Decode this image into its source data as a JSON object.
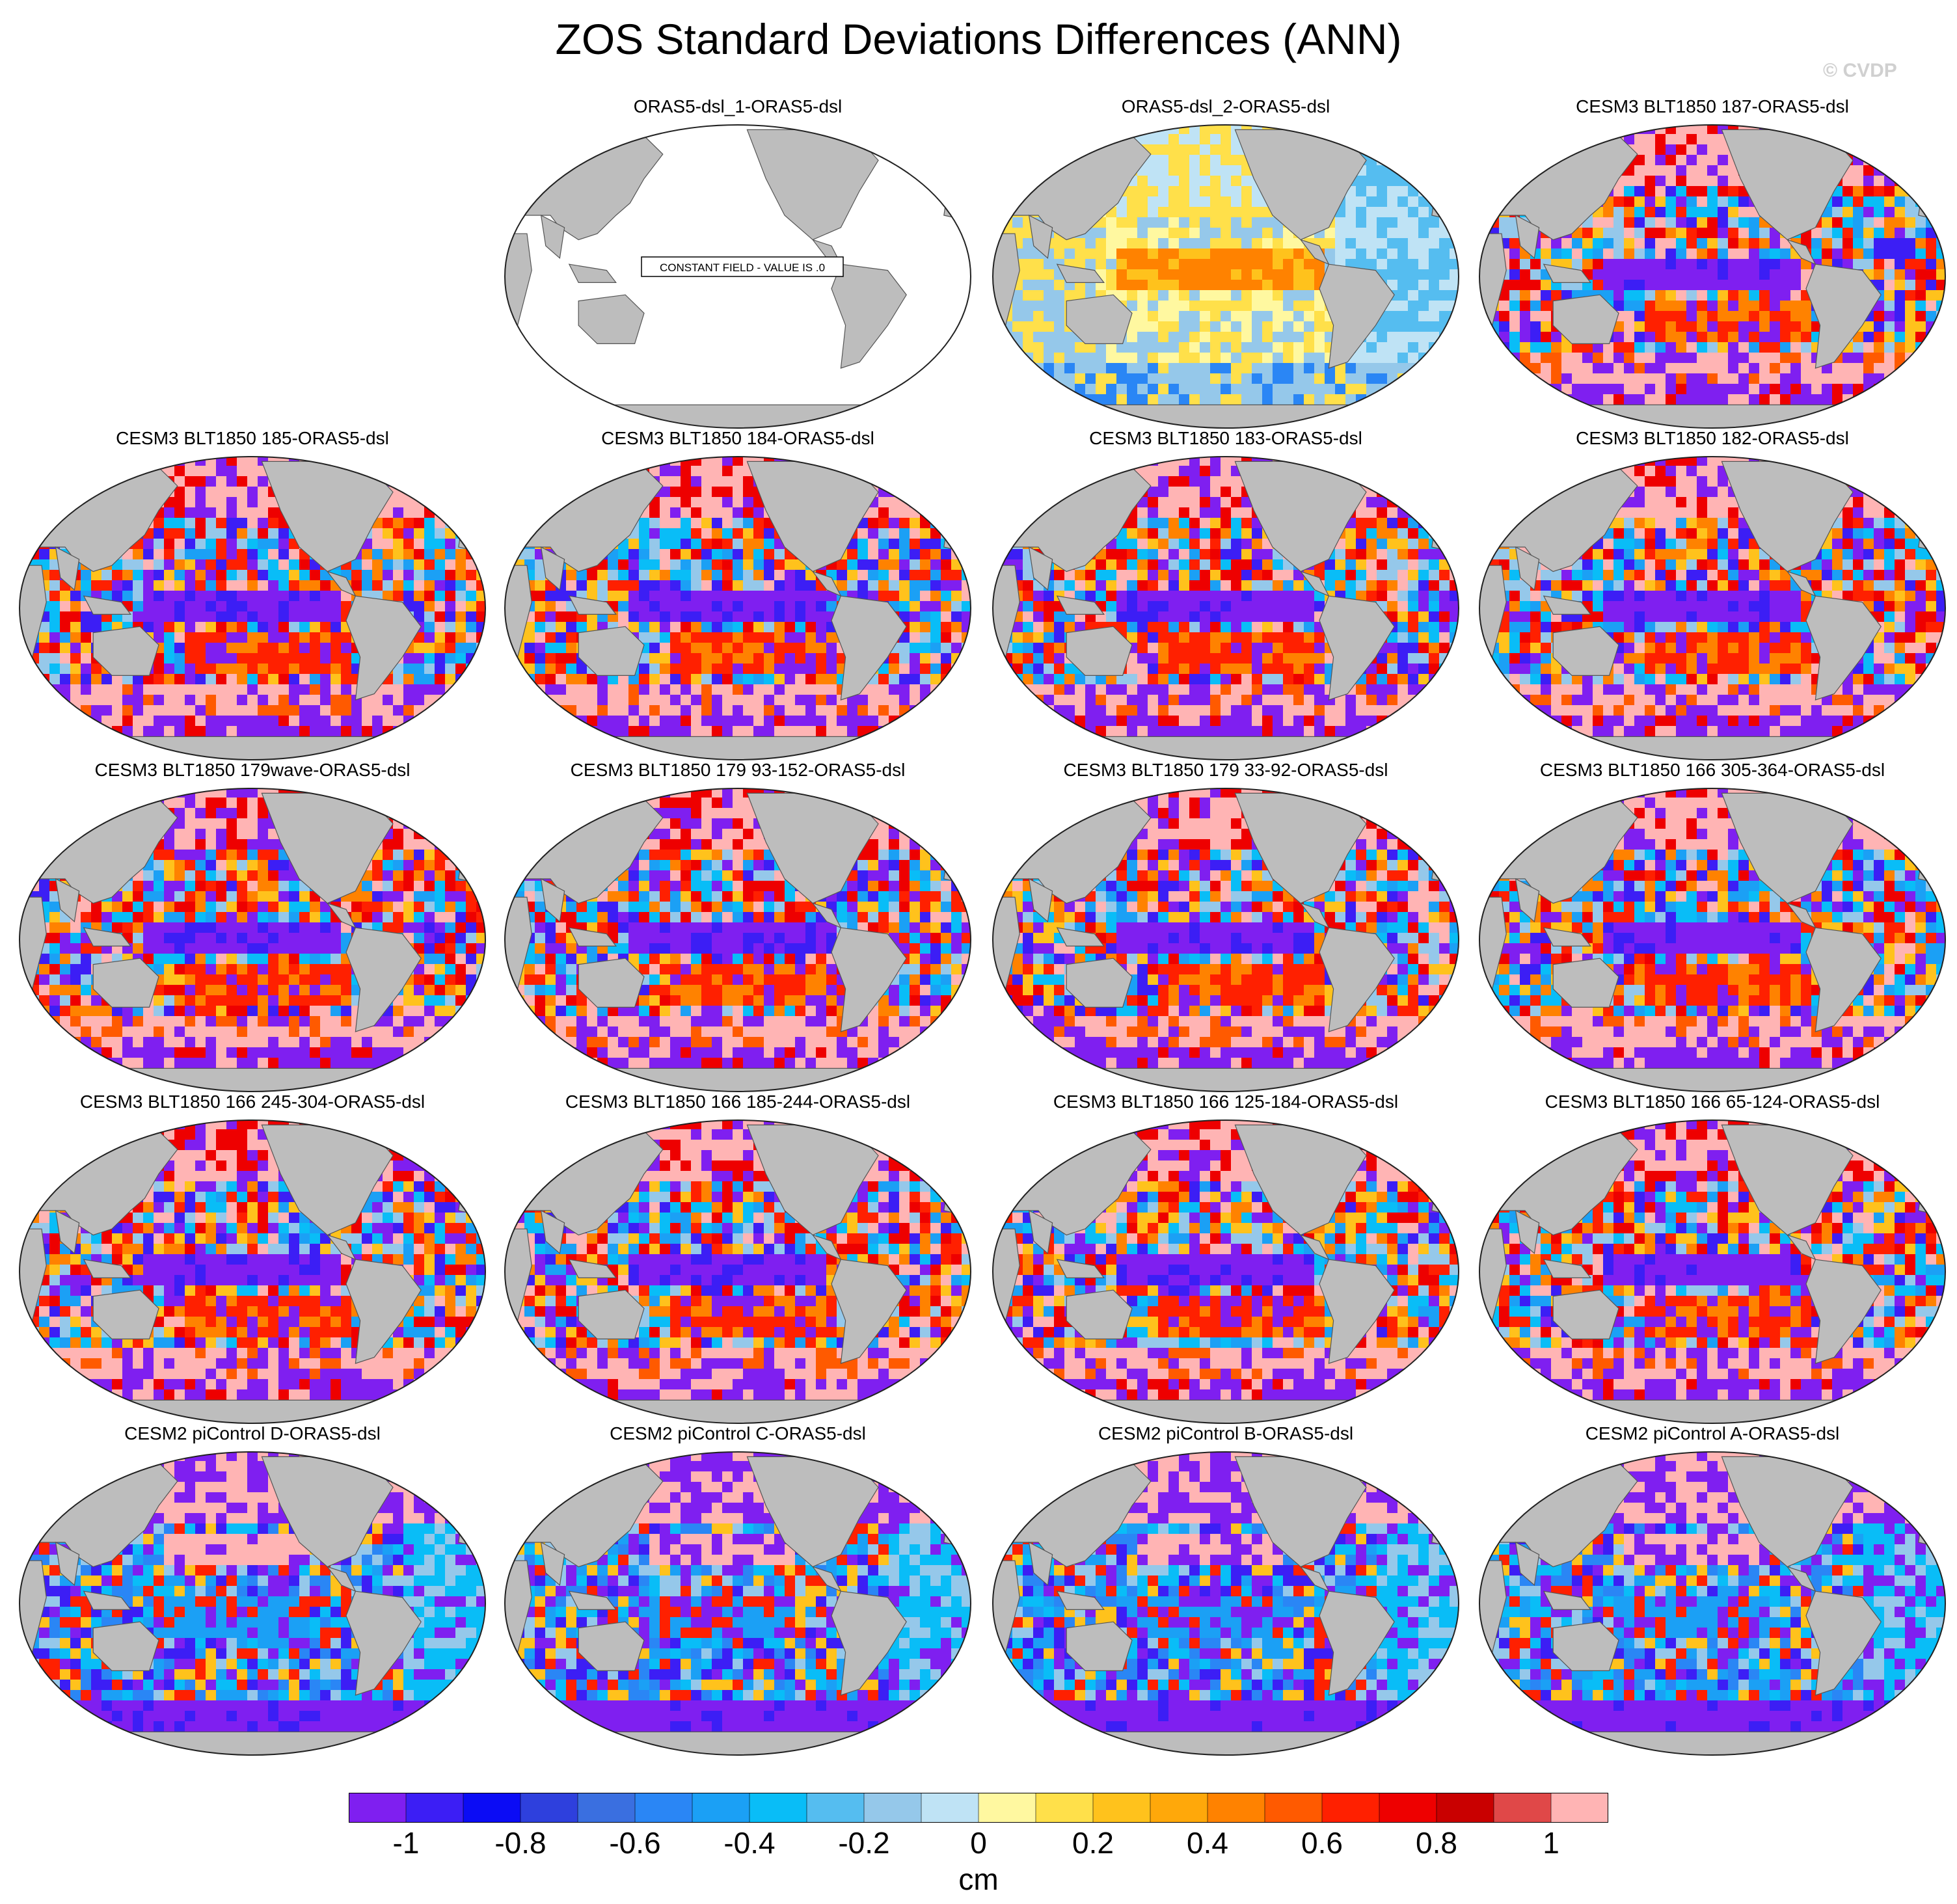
{
  "figure": {
    "title": "ZOS Standard Deviations Differences (ANN)",
    "watermark": "© CVDP"
  },
  "panels": [
    {
      "title": "ORAS5-dsl_1-ORAS5-dsl",
      "constant": true,
      "constant_label": "CONSTANT FIELD - VALUE IS .0",
      "style": "const"
    },
    {
      "title": "ORAS5-dsl_2-ORAS5-dsl",
      "style": "warmyellow"
    },
    {
      "title": "CESM3 BLT1850 187-ORAS5-dsl",
      "style": "cesm3"
    },
    {
      "title": "CESM3 BLT1850 185-ORAS5-dsl",
      "style": "cesm3"
    },
    {
      "title": "CESM3 BLT1850 184-ORAS5-dsl",
      "style": "cesm3"
    },
    {
      "title": "CESM3 BLT1850 183-ORAS5-dsl",
      "style": "cesm3"
    },
    {
      "title": "CESM3 BLT1850 182-ORAS5-dsl",
      "style": "cesm3"
    },
    {
      "title": "CESM3 BLT1850 179wave-ORAS5-dsl",
      "style": "cesm3"
    },
    {
      "title": "CESM3 BLT1850 179 93-152-ORAS5-dsl",
      "style": "cesm3"
    },
    {
      "title": "CESM3 BLT1850 179 33-92-ORAS5-dsl",
      "style": "cesm3"
    },
    {
      "title": "CESM3 BLT1850 166 305-364-ORAS5-dsl",
      "style": "cesm3"
    },
    {
      "title": "CESM3 BLT1850 166 245-304-ORAS5-dsl",
      "style": "cesm3"
    },
    {
      "title": "CESM3 BLT1850 166 185-244-ORAS5-dsl",
      "style": "cesm3"
    },
    {
      "title": "CESM3 BLT1850 166 125-184-ORAS5-dsl",
      "style": "cesm3"
    },
    {
      "title": "CESM3 BLT1850 166 65-124-ORAS5-dsl",
      "style": "cesm3"
    },
    {
      "title": "CESM2 piControl D-ORAS5-dsl",
      "style": "cesm2"
    },
    {
      "title": "CESM2 piControl C-ORAS5-dsl",
      "style": "cesm2"
    },
    {
      "title": "CESM2 piControl B-ORAS5-dsl",
      "style": "cesm2"
    },
    {
      "title": "CESM2 piControl A-ORAS5-dsl",
      "style": "cesm2"
    }
  ],
  "colorbar": {
    "units": "cm",
    "colors": [
      "#7f1ff0",
      "#3c1ef5",
      "#0b0cf5",
      "#2e40dd",
      "#3a6fe0",
      "#2a86f5",
      "#1ba0f5",
      "#09bdf7",
      "#55bdf0",
      "#95c8ea",
      "#bfe3f5",
      "#fff8a0",
      "#ffe04a",
      "#ffc21c",
      "#ffa80a",
      "#ff8200",
      "#ff5a00",
      "#ff2000",
      "#ee0000",
      "#c90000",
      "#e04848",
      "#ffb4b4"
    ],
    "tick_labels": [
      "-1",
      "-0.8",
      "-0.6",
      "-0.4",
      "-0.2",
      "0",
      "0.2",
      "0.4",
      "0.6",
      "0.8",
      "1"
    ]
  }
}
